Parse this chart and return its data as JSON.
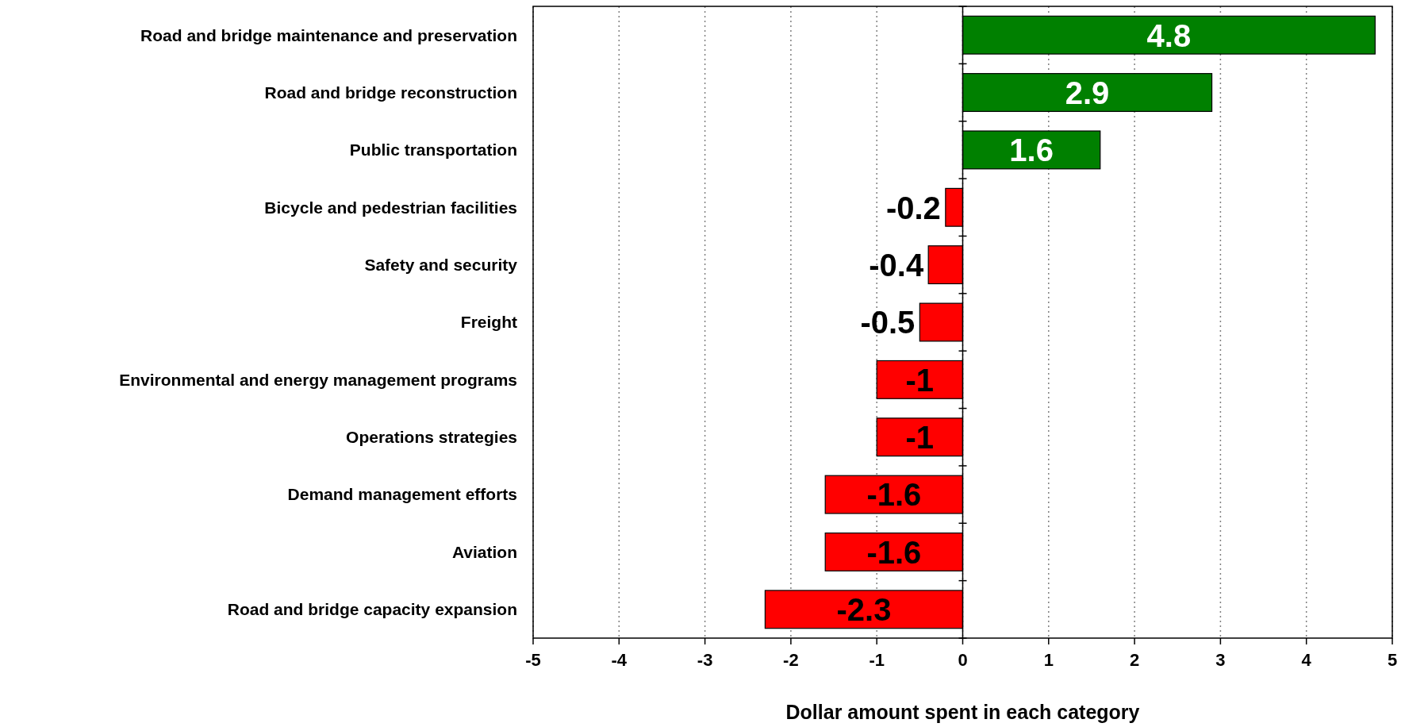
{
  "chart_data": {
    "type": "bar",
    "orientation": "horizontal",
    "xlabel": "Dollar amount spent in each category",
    "categories": [
      "Road and bridge maintenance and preservation",
      "Road and bridge reconstruction",
      "Public transportation",
      "Bicycle and pedestrian facilities",
      "Safety and security",
      "Freight",
      "Environmental and energy management programs",
      "Operations strategies",
      "Demand management efforts",
      "Aviation",
      "Road and bridge capacity expansion"
    ],
    "values": [
      4.8,
      2.9,
      1.6,
      -0.2,
      -0.4,
      -0.5,
      -1,
      -1,
      -1.6,
      -1.6,
      -2.3
    ],
    "colors": [
      "#008000",
      "#008000",
      "#008000",
      "#ff0000",
      "#ff0000",
      "#ff0000",
      "#ff0000",
      "#ff0000",
      "#ff0000",
      "#ff0000",
      "#ff0000"
    ],
    "xlim": [
      -5,
      5
    ],
    "xticks": [
      -5,
      -4,
      -3,
      -2,
      -1,
      0,
      1,
      2,
      3,
      4,
      5
    ],
    "grid": "x",
    "data_labels": true
  }
}
